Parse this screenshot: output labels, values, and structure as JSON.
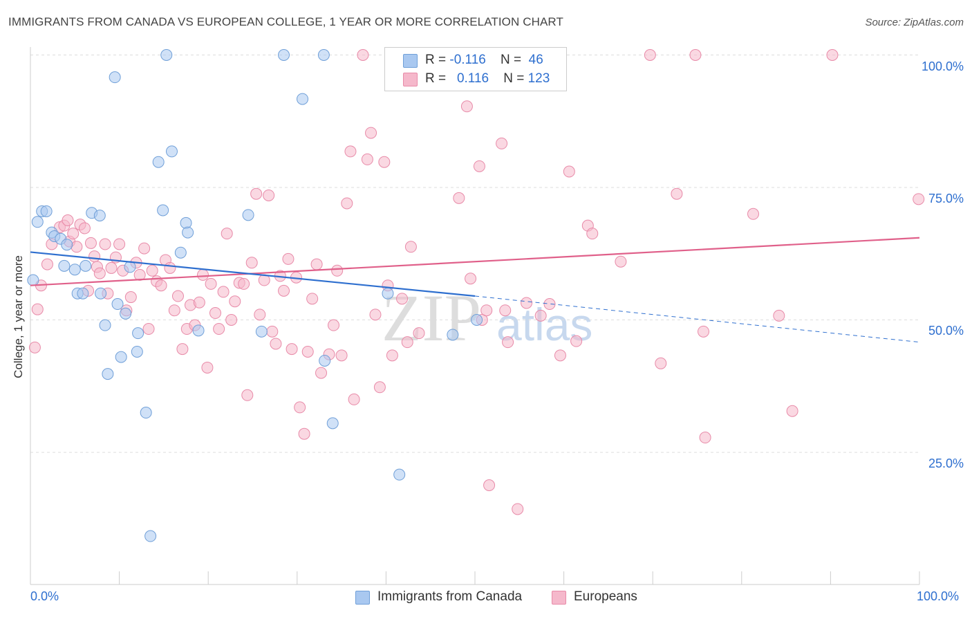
{
  "header": {
    "title": "IMMIGRANTS FROM CANADA VS EUROPEAN COLLEGE, 1 YEAR OR MORE CORRELATION CHART",
    "source": "Source: ZipAtlas.com"
  },
  "legend_top": {
    "rows": [
      {
        "r_label": "R = ",
        "r_value": "-0.116",
        "n_label": "N = ",
        "n_value": "46"
      },
      {
        "r_label": "R = ",
        "r_value": "0.116",
        "n_label": "N = ",
        "n_value": "123"
      }
    ]
  },
  "legend_bottom": {
    "items": [
      {
        "label": "Immigrants from Canada"
      },
      {
        "label": "Europeans"
      }
    ]
  },
  "axes": {
    "ylabel": "College, 1 year or more",
    "x_tick_left": "0.0%",
    "x_tick_right": "100.0%",
    "y_ticks": [
      "100.0%",
      "75.0%",
      "50.0%",
      "25.0%"
    ]
  },
  "colors": {
    "blue_fill": "#a9c8f0",
    "blue_stroke": "#6f9fd8",
    "blue_line": "#2e6fcf",
    "pink_fill": "#f5b8cb",
    "pink_stroke": "#e88aa8",
    "pink_line": "#e0608a",
    "grid": "#dddddd",
    "axis": "#cccccc",
    "tick_text": "#2e6fcf"
  },
  "chart_data": {
    "type": "scatter",
    "xlim": [
      0,
      100
    ],
    "ylim": [
      5,
      102
    ],
    "y_ticks": [
      25,
      50,
      75,
      100
    ],
    "grid": "horizontal dashed",
    "legend_placement": "top-center",
    "series": [
      {
        "name": "Immigrants from Canada",
        "color": "#a9c8f0",
        "stats": {
          "R": -0.116,
          "N": 46
        },
        "trend": {
          "x0": 0,
          "y0": 62.8,
          "x1": 50,
          "y1": 54.5,
          "dashed_to": [
            100,
            45.8
          ]
        },
        "points": [
          [
            0.3,
            57.5
          ],
          [
            0.8,
            68.5
          ],
          [
            1.3,
            70.5
          ],
          [
            1.8,
            70.5
          ],
          [
            2.4,
            66.5
          ],
          [
            2.7,
            65.8
          ],
          [
            3.4,
            65.3
          ],
          [
            4.1,
            64.2
          ],
          [
            3.8,
            60.2
          ],
          [
            5.0,
            59.5
          ],
          [
            5.3,
            55.0
          ],
          [
            5.9,
            55.0
          ],
          [
            6.2,
            60.2
          ],
          [
            6.9,
            70.2
          ],
          [
            7.8,
            69.7
          ],
          [
            7.9,
            55.0
          ],
          [
            8.4,
            49.0
          ],
          [
            8.7,
            39.8
          ],
          [
            9.5,
            95.8
          ],
          [
            9.8,
            53.0
          ],
          [
            10.2,
            43.0
          ],
          [
            10.7,
            51.2
          ],
          [
            11.2,
            60.0
          ],
          [
            12.0,
            44.0
          ],
          [
            12.1,
            47.5
          ],
          [
            13.0,
            32.5
          ],
          [
            13.5,
            9.2
          ],
          [
            14.4,
            79.8
          ],
          [
            14.9,
            70.7
          ],
          [
            15.3,
            100.0
          ],
          [
            15.9,
            81.8
          ],
          [
            16.9,
            62.7
          ],
          [
            17.5,
            68.3
          ],
          [
            17.7,
            66.5
          ],
          [
            18.9,
            48.0
          ],
          [
            24.5,
            69.8
          ],
          [
            26.0,
            47.8
          ],
          [
            28.5,
            100.0
          ],
          [
            30.6,
            91.7
          ],
          [
            33.0,
            100.0
          ],
          [
            33.1,
            42.3
          ],
          [
            34.0,
            30.5
          ],
          [
            40.2,
            55.0
          ],
          [
            41.5,
            20.8
          ],
          [
            47.5,
            47.2
          ],
          [
            50.2,
            50.0
          ]
        ]
      },
      {
        "name": "Europeans",
        "color": "#f5b8cb",
        "stats": {
          "R": 0.116,
          "N": 123
        },
        "trend": {
          "x0": 0,
          "y0": 56.5,
          "x1": 100,
          "y1": 65.5
        },
        "points": [
          [
            0.5,
            44.8
          ],
          [
            0.8,
            52.0
          ],
          [
            1.2,
            56.5
          ],
          [
            1.9,
            60.5
          ],
          [
            2.4,
            64.3
          ],
          [
            3.3,
            67.5
          ],
          [
            3.8,
            67.8
          ],
          [
            4.2,
            68.8
          ],
          [
            4.4,
            64.8
          ],
          [
            4.8,
            66.3
          ],
          [
            5.2,
            63.8
          ],
          [
            5.6,
            68.0
          ],
          [
            6.1,
            67.3
          ],
          [
            6.5,
            55.5
          ],
          [
            6.8,
            64.5
          ],
          [
            7.2,
            62.0
          ],
          [
            7.5,
            60.0
          ],
          [
            7.8,
            58.8
          ],
          [
            8.4,
            64.3
          ],
          [
            8.7,
            55.0
          ],
          [
            9.1,
            59.8
          ],
          [
            9.6,
            61.8
          ],
          [
            10.0,
            64.3
          ],
          [
            10.4,
            59.3
          ],
          [
            10.8,
            51.8
          ],
          [
            11.3,
            54.3
          ],
          [
            11.9,
            60.8
          ],
          [
            12.3,
            58.5
          ],
          [
            12.8,
            63.5
          ],
          [
            13.3,
            48.3
          ],
          [
            13.7,
            59.3
          ],
          [
            14.2,
            57.3
          ],
          [
            14.7,
            56.5
          ],
          [
            15.2,
            61.3
          ],
          [
            15.7,
            59.8
          ],
          [
            16.2,
            51.8
          ],
          [
            16.6,
            54.5
          ],
          [
            17.1,
            44.5
          ],
          [
            17.6,
            48.3
          ],
          [
            18.0,
            52.8
          ],
          [
            18.5,
            49.0
          ],
          [
            19.0,
            53.3
          ],
          [
            19.4,
            58.5
          ],
          [
            19.9,
            41.0
          ],
          [
            20.3,
            56.8
          ],
          [
            20.8,
            51.3
          ],
          [
            21.2,
            48.3
          ],
          [
            21.7,
            55.3
          ],
          [
            22.1,
            66.3
          ],
          [
            22.6,
            50.0
          ],
          [
            23.0,
            53.5
          ],
          [
            23.5,
            57.0
          ],
          [
            24.0,
            56.8
          ],
          [
            24.4,
            35.8
          ],
          [
            24.9,
            60.8
          ],
          [
            25.4,
            73.8
          ],
          [
            25.8,
            51.0
          ],
          [
            26.3,
            57.5
          ],
          [
            26.8,
            73.5
          ],
          [
            27.2,
            47.8
          ],
          [
            27.6,
            45.5
          ],
          [
            28.1,
            58.3
          ],
          [
            28.5,
            55.5
          ],
          [
            29.0,
            61.5
          ],
          [
            29.4,
            44.5
          ],
          [
            29.9,
            58.0
          ],
          [
            30.3,
            33.5
          ],
          [
            30.8,
            28.5
          ],
          [
            31.2,
            44.0
          ],
          [
            31.7,
            54.0
          ],
          [
            32.2,
            60.5
          ],
          [
            32.7,
            40.0
          ],
          [
            33.6,
            43.5
          ],
          [
            34.1,
            49.0
          ],
          [
            34.5,
            59.3
          ],
          [
            35.0,
            43.3
          ],
          [
            35.6,
            72.0
          ],
          [
            36.0,
            81.8
          ],
          [
            36.4,
            35.0
          ],
          [
            37.4,
            100.0
          ],
          [
            37.9,
            80.3
          ],
          [
            38.3,
            85.3
          ],
          [
            38.8,
            51.0
          ],
          [
            39.3,
            37.3
          ],
          [
            39.8,
            79.8
          ],
          [
            40.2,
            56.5
          ],
          [
            40.7,
            43.3
          ],
          [
            41.8,
            54.0
          ],
          [
            42.4,
            45.8
          ],
          [
            42.8,
            63.8
          ],
          [
            43.7,
            47.5
          ],
          [
            45.2,
            100.0
          ],
          [
            48.2,
            73.0
          ],
          [
            49.1,
            90.3
          ],
          [
            49.5,
            57.8
          ],
          [
            50.5,
            79.0
          ],
          [
            50.8,
            50.0
          ],
          [
            51.3,
            51.8
          ],
          [
            51.6,
            18.8
          ],
          [
            53.0,
            83.3
          ],
          [
            53.4,
            51.8
          ],
          [
            53.7,
            45.8
          ],
          [
            54.8,
            14.3
          ],
          [
            55.8,
            53.2
          ],
          [
            57.4,
            50.8
          ],
          [
            58.4,
            53.0
          ],
          [
            59.6,
            43.3
          ],
          [
            60.6,
            78.0
          ],
          [
            61.4,
            46.0
          ],
          [
            62.7,
            67.8
          ],
          [
            63.2,
            66.3
          ],
          [
            66.4,
            61.0
          ],
          [
            69.7,
            100.0
          ],
          [
            70.9,
            41.8
          ],
          [
            72.7,
            73.8
          ],
          [
            74.8,
            100.0
          ],
          [
            75.7,
            47.8
          ],
          [
            75.9,
            27.8
          ],
          [
            81.3,
            70.0
          ],
          [
            84.2,
            50.8
          ],
          [
            85.7,
            32.8
          ],
          [
            90.2,
            100.0
          ],
          [
            99.9,
            72.8
          ]
        ]
      }
    ]
  }
}
